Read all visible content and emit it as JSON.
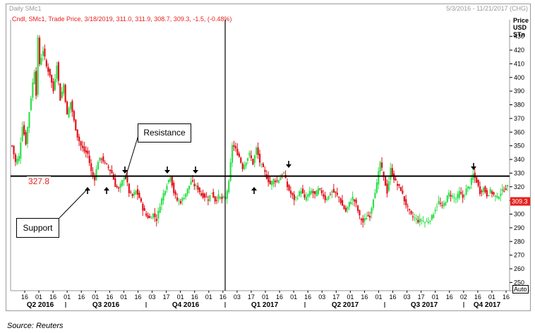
{
  "header": {
    "instrument": "Daily SMc1",
    "date_range": "5/3/2016 - 11/21/2017 (CHG)",
    "ohlc_line": "Cndl, SMc1, Trade Price, 3/18/2019, 311.0, 311.9, 308.7, 309.3, -1.5, (-0.48%)",
    "price_axis_title": [
      "Price",
      "USD",
      "STn"
    ],
    "auto_label": "Auto"
  },
  "annotations": {
    "resistance_label": "Resistance",
    "support_label": "Support",
    "level_label": "327.8"
  },
  "source": "Source: Reuters",
  "colors": {
    "up": "#2ee04b",
    "down": "#e3101a",
    "level_line": "#000000",
    "last_price_bg": "#e8201c"
  },
  "chart_data": {
    "type": "candlestick",
    "frequency": "daily",
    "y_range": [
      244,
      436
    ],
    "y_ticks": [
      250,
      260,
      270,
      280,
      290,
      300,
      310,
      320,
      330,
      340,
      350,
      360,
      370,
      380,
      390,
      400,
      410,
      420,
      430
    ],
    "horizontal_level": 327.8,
    "last_price": "309.3",
    "x_tick_labels": [
      "16",
      "01",
      "16",
      "01",
      "16",
      "01",
      "16",
      "01",
      "16",
      "03",
      "17",
      "01",
      "16",
      "01",
      "16",
      "03",
      "17",
      "01",
      "16",
      "01",
      "16",
      "03",
      "17",
      "01",
      "16",
      "01",
      "16",
      "03",
      "17",
      "01",
      "16",
      "02",
      "16",
      "01",
      "16"
    ],
    "x_quarter_labels": [
      "Q2 2016",
      "Q3 2016",
      "Q4 2016",
      "Q1 2017",
      "Q2 2017",
      "Q3 2017",
      "Q4 2017"
    ],
    "price_path": [
      [
        0,
        350
      ],
      [
        2,
        338
      ],
      [
        4,
        342
      ],
      [
        6,
        365
      ],
      [
        8,
        352
      ],
      [
        10,
        375
      ],
      [
        12,
        396
      ],
      [
        13,
        405
      ],
      [
        14,
        388
      ],
      [
        15,
        428
      ],
      [
        16,
        410
      ],
      [
        18,
        420
      ],
      [
        20,
        408
      ],
      [
        22,
        402
      ],
      [
        24,
        390
      ],
      [
        26,
        410
      ],
      [
        28,
        384
      ],
      [
        30,
        395
      ],
      [
        32,
        372
      ],
      [
        34,
        382
      ],
      [
        36,
        368
      ],
      [
        38,
        357
      ],
      [
        40,
        350
      ],
      [
        42,
        346
      ],
      [
        44,
        344
      ],
      [
        46,
        331
      ],
      [
        48,
        326
      ],
      [
        50,
        339
      ],
      [
        52,
        341
      ],
      [
        54,
        337
      ],
      [
        56,
        334
      ],
      [
        58,
        330
      ],
      [
        60,
        321
      ],
      [
        62,
        318
      ],
      [
        64,
        324
      ],
      [
        66,
        328
      ],
      [
        68,
        316
      ],
      [
        70,
        313
      ],
      [
        72,
        317
      ],
      [
        74,
        312
      ],
      [
        76,
        304
      ],
      [
        78,
        299
      ],
      [
        80,
        297
      ],
      [
        82,
        300
      ],
      [
        84,
        296
      ],
      [
        86,
        307
      ],
      [
        88,
        315
      ],
      [
        90,
        322
      ],
      [
        92,
        328
      ],
      [
        94,
        316
      ],
      [
        96,
        310
      ],
      [
        98,
        309
      ],
      [
        100,
        313
      ],
      [
        102,
        318
      ],
      [
        104,
        324
      ],
      [
        106,
        321
      ],
      [
        108,
        319
      ],
      [
        110,
        314
      ],
      [
        112,
        313
      ],
      [
        114,
        311
      ],
      [
        116,
        316
      ],
      [
        118,
        310
      ],
      [
        120,
        313
      ],
      [
        122,
        311
      ],
      [
        124,
        312
      ],
      [
        126,
        323
      ],
      [
        128,
        351
      ],
      [
        130,
        347
      ],
      [
        132,
        342
      ],
      [
        134,
        334
      ],
      [
        136,
        339
      ],
      [
        138,
        344
      ],
      [
        140,
        337
      ],
      [
        142,
        348
      ],
      [
        144,
        338
      ],
      [
        146,
        333
      ],
      [
        148,
        327
      ],
      [
        150,
        322
      ],
      [
        152,
        325
      ],
      [
        154,
        324
      ],
      [
        156,
        327
      ],
      [
        158,
        330
      ],
      [
        160,
        320
      ],
      [
        162,
        315
      ],
      [
        164,
        311
      ],
      [
        166,
        313
      ],
      [
        168,
        318
      ],
      [
        170,
        311
      ],
      [
        172,
        314
      ],
      [
        174,
        317
      ],
      [
        176,
        314
      ],
      [
        178,
        318
      ],
      [
        180,
        316
      ],
      [
        182,
        311
      ],
      [
        184,
        313
      ],
      [
        186,
        317
      ],
      [
        188,
        315
      ],
      [
        190,
        312
      ],
      [
        192,
        306
      ],
      [
        194,
        302
      ],
      [
        196,
        308
      ],
      [
        198,
        312
      ],
      [
        200,
        307
      ],
      [
        202,
        298
      ],
      [
        204,
        294
      ],
      [
        206,
        298
      ],
      [
        208,
        299
      ],
      [
        210,
        312
      ],
      [
        212,
        322
      ],
      [
        214,
        338
      ],
      [
        216,
        327
      ],
      [
        218,
        316
      ],
      [
        220,
        333
      ],
      [
        222,
        326
      ],
      [
        224,
        321
      ],
      [
        226,
        318
      ],
      [
        228,
        310
      ],
      [
        230,
        304
      ],
      [
        232,
        299
      ],
      [
        234,
        297
      ],
      [
        236,
        295
      ],
      [
        238,
        296
      ],
      [
        240,
        294
      ],
      [
        242,
        295
      ],
      [
        244,
        298
      ],
      [
        246,
        304
      ],
      [
        248,
        309
      ],
      [
        250,
        305
      ],
      [
        252,
        310
      ],
      [
        254,
        315
      ],
      [
        256,
        313
      ],
      [
        258,
        311
      ],
      [
        260,
        316
      ],
      [
        262,
        312
      ],
      [
        264,
        318
      ],
      [
        266,
        321
      ],
      [
        268,
        329
      ],
      [
        270,
        324
      ],
      [
        272,
        316
      ],
      [
        274,
        319
      ],
      [
        276,
        314
      ],
      [
        278,
        317
      ],
      [
        280,
        314
      ],
      [
        282,
        312
      ],
      [
        284,
        316
      ],
      [
        286,
        318
      ],
      [
        288,
        320
      ]
    ]
  }
}
